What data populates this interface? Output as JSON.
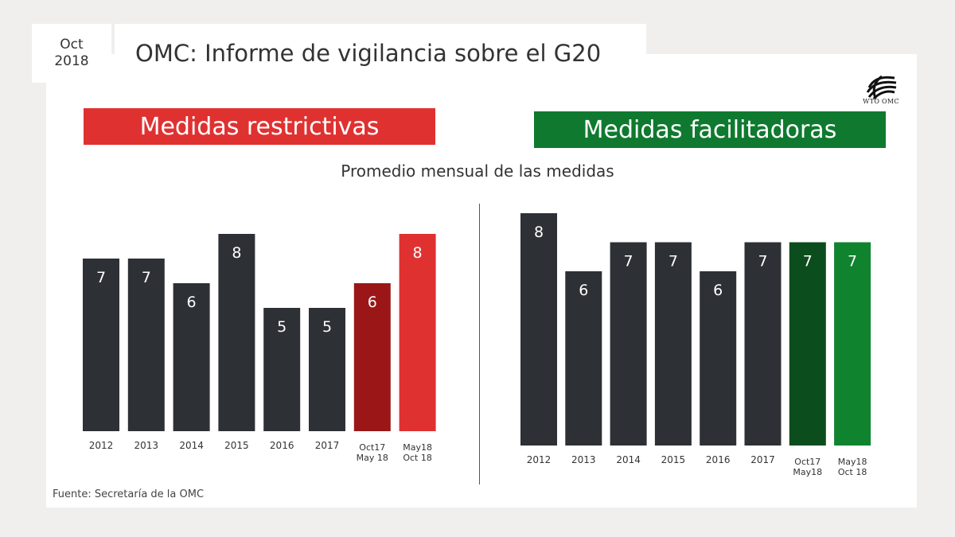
{
  "header": {
    "date_line1": "Oct",
    "date_line2": "2018",
    "title": "OMC: Informe de vigilancia sobre el G20"
  },
  "logo": {
    "text": "WTO OMC"
  },
  "subtitle": "Promedio mensual de las medidas",
  "source": "Fuente: Secretaría de la OMC",
  "colors": {
    "bar_default": "#2d3035",
    "restrictive_banner": "#e03131",
    "facilitating_banner": "#0f7a2f"
  },
  "chart_data": [
    {
      "type": "bar",
      "title": "Medidas restrictivas",
      "categories": [
        [
          "2012"
        ],
        [
          "2013"
        ],
        [
          "2014"
        ],
        [
          "2015"
        ],
        [
          "2016"
        ],
        [
          "2017"
        ],
        [
          "Oct17",
          "May 18"
        ],
        [
          "May18",
          "Oct 18"
        ]
      ],
      "values": [
        7,
        7,
        6,
        8,
        5,
        5,
        6,
        8
      ],
      "bar_colors": [
        "#2d3035",
        "#2d3035",
        "#2d3035",
        "#2d3035",
        "#2d3035",
        "#2d3035",
        "#9b1717",
        "#e03131"
      ],
      "ylim": [
        0,
        8
      ],
      "grid": false,
      "data_labels": true
    },
    {
      "type": "bar",
      "title": "Medidas facilitadoras",
      "categories": [
        [
          "2012"
        ],
        [
          "2013"
        ],
        [
          "2014"
        ],
        [
          "2015"
        ],
        [
          "2016"
        ],
        [
          "2017"
        ],
        [
          "Oct17",
          "May18"
        ],
        [
          "May18",
          "Oct 18"
        ]
      ],
      "values": [
        8,
        6,
        7,
        7,
        6,
        7,
        7,
        7
      ],
      "bar_colors": [
        "#2d3035",
        "#2d3035",
        "#2d3035",
        "#2d3035",
        "#2d3035",
        "#2d3035",
        "#0b4d1c",
        "#10832f"
      ],
      "ylim": [
        0,
        8
      ],
      "grid": false,
      "data_labels": true
    }
  ]
}
